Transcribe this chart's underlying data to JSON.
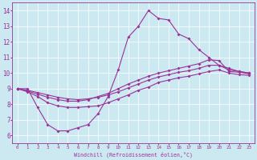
{
  "xlabel": "Windchill (Refroidissement éolien,°C)",
  "bg_color": "#cce8f0",
  "line_color": "#993399",
  "xlim": [
    -0.5,
    23.5
  ],
  "ylim": [
    5.5,
    14.5
  ],
  "xticks": [
    0,
    1,
    2,
    3,
    4,
    5,
    6,
    7,
    8,
    9,
    10,
    11,
    12,
    13,
    14,
    15,
    16,
    17,
    18,
    19,
    20,
    21,
    22,
    23
  ],
  "yticks": [
    6,
    7,
    8,
    9,
    10,
    11,
    12,
    13,
    14
  ],
  "line1_x": [
    0,
    1,
    2,
    3,
    4,
    5,
    6,
    7,
    8,
    9,
    10,
    11,
    12,
    13,
    14,
    15,
    16,
    17,
    18,
    19,
    20,
    21,
    22,
    23
  ],
  "line1_y": [
    9.0,
    9.0,
    7.8,
    6.7,
    6.3,
    6.3,
    6.5,
    6.7,
    7.4,
    8.5,
    10.2,
    12.3,
    13.0,
    14.0,
    13.5,
    13.4,
    12.5,
    12.2,
    11.5,
    11.0,
    10.5,
    10.3,
    10.1,
    10.0
  ],
  "line2_x": [
    0,
    1,
    2,
    3,
    4,
    5,
    6,
    7,
    8,
    9,
    10,
    11,
    12,
    13,
    14,
    15,
    16,
    17,
    18,
    19,
    20,
    21,
    22,
    23
  ],
  "line2_y": [
    9.0,
    8.8,
    8.5,
    8.1,
    7.9,
    7.8,
    7.8,
    7.85,
    7.9,
    8.1,
    8.35,
    8.6,
    8.9,
    9.1,
    9.4,
    9.55,
    9.7,
    9.8,
    9.95,
    10.1,
    10.2,
    10.0,
    9.9,
    9.85
  ],
  "line3_x": [
    0,
    1,
    2,
    3,
    4,
    5,
    6,
    7,
    8,
    9,
    10,
    11,
    12,
    13,
    14,
    15,
    16,
    17,
    18,
    19,
    20,
    21,
    22,
    23
  ],
  "line3_y": [
    9.0,
    8.9,
    8.75,
    8.6,
    8.45,
    8.35,
    8.3,
    8.35,
    8.45,
    8.6,
    8.8,
    9.05,
    9.3,
    9.55,
    9.75,
    9.9,
    10.05,
    10.15,
    10.3,
    10.5,
    10.5,
    10.2,
    10.1,
    10.0
  ],
  "line4_x": [
    0,
    1,
    2,
    3,
    4,
    5,
    6,
    7,
    8,
    9,
    10,
    11,
    12,
    13,
    14,
    15,
    16,
    17,
    18,
    19,
    20,
    21,
    22,
    23
  ],
  "line4_y": [
    9.0,
    8.85,
    8.65,
    8.45,
    8.3,
    8.2,
    8.2,
    8.3,
    8.5,
    8.7,
    9.0,
    9.3,
    9.55,
    9.8,
    10.0,
    10.15,
    10.3,
    10.45,
    10.6,
    10.85,
    10.8,
    10.1,
    10.05,
    9.95
  ]
}
